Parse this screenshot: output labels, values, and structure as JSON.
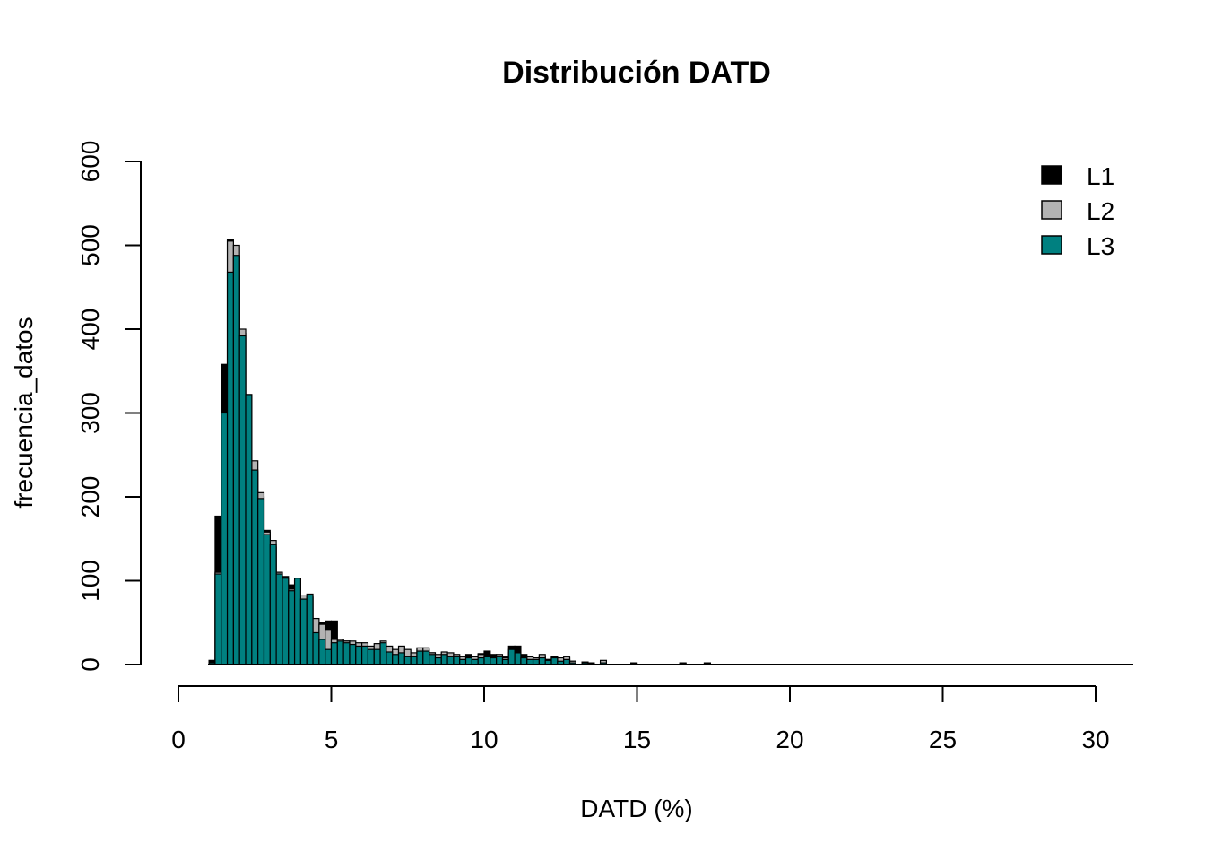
{
  "chart_data": {
    "type": "bar",
    "title": "Distribución DATD",
    "xlabel": "DATD (%)",
    "ylabel": "frecuencia_datos",
    "xlim": [
      0,
      30
    ],
    "ylim": [
      0,
      600
    ],
    "xticks": [
      "0",
      "5",
      "10",
      "15",
      "20",
      "25",
      "30"
    ],
    "yticks": [
      "0",
      "100",
      "200",
      "300",
      "400",
      "500",
      "600"
    ],
    "legend_position": "top-right",
    "grid": false,
    "bin_width": 0.2,
    "series": [
      {
        "name": "L1",
        "color": "#000000",
        "x": [
          1.1,
          1.3,
          1.5,
          1.7,
          1.9,
          2.1,
          2.3,
          2.5,
          2.7,
          2.9,
          3.1,
          3.3,
          3.5,
          3.7,
          3.9,
          4.1,
          4.3,
          4.5,
          4.7,
          4.9,
          5.1,
          5.3,
          5.5,
          5.7,
          5.9,
          6.1,
          6.3,
          6.5,
          6.7,
          6.9,
          7.1,
          7.3,
          7.5,
          7.7,
          7.9,
          8.1,
          8.3,
          8.5,
          8.7,
          8.9,
          9.1,
          9.3,
          9.5,
          9.7,
          9.9,
          10.1,
          10.3,
          10.5,
          10.7,
          10.9,
          11.1,
          11.3,
          11.5,
          11.7,
          11.9,
          12.1,
          12.3,
          12.5,
          12.7,
          12.9,
          13.3,
          13.5,
          13.9,
          14.9,
          16.5,
          17.3
        ],
        "values": [
          5,
          177,
          358,
          507,
          487,
          395,
          320,
          230,
          200,
          160,
          140,
          110,
          105,
          95,
          100,
          80,
          80,
          45,
          50,
          52,
          52,
          30,
          28,
          26,
          25,
          25,
          20,
          22,
          25,
          20,
          15,
          18,
          14,
          12,
          18,
          18,
          14,
          10,
          14,
          12,
          10,
          8,
          12,
          10,
          13,
          16,
          12,
          10,
          10,
          22,
          22,
          12,
          10,
          8,
          10,
          6,
          10,
          6,
          8,
          4,
          3,
          2,
          3,
          2,
          2,
          2
        ]
      },
      {
        "name": "L2",
        "color": "#b3b3b3",
        "x": [
          1.1,
          1.3,
          1.5,
          1.7,
          1.9,
          2.1,
          2.3,
          2.5,
          2.7,
          2.9,
          3.1,
          3.3,
          3.5,
          3.7,
          3.9,
          4.1,
          4.3,
          4.5,
          4.7,
          4.9,
          5.1,
          5.3,
          5.5,
          5.7,
          5.9,
          6.1,
          6.3,
          6.5,
          6.7,
          6.9,
          7.1,
          7.3,
          7.5,
          7.7,
          7.9,
          8.1,
          8.3,
          8.5,
          8.7,
          8.9,
          9.1,
          9.3,
          9.5,
          9.7,
          9.9,
          10.1,
          10.3,
          10.5,
          10.7,
          10.9,
          11.1,
          11.3,
          11.5,
          11.7,
          11.9,
          12.1,
          12.3,
          12.5,
          12.7,
          12.9,
          13.3,
          13.5,
          13.9,
          14.9,
          16.5,
          17.3
        ],
        "values": [
          2,
          110,
          300,
          505,
          500,
          400,
          322,
          243,
          205,
          158,
          148,
          110,
          98,
          90,
          100,
          82,
          82,
          55,
          48,
          42,
          30,
          30,
          28,
          28,
          26,
          26,
          22,
          25,
          28,
          22,
          18,
          22,
          18,
          14,
          20,
          20,
          14,
          12,
          15,
          14,
          12,
          10,
          10,
          10,
          12,
          10,
          10,
          12,
          8,
          14,
          12,
          10,
          10,
          8,
          12,
          6,
          10,
          8,
          10,
          4,
          3,
          2,
          5,
          2,
          2,
          2
        ]
      },
      {
        "name": "L3",
        "color": "#008080",
        "x": [
          1.1,
          1.3,
          1.5,
          1.7,
          1.9,
          2.1,
          2.3,
          2.5,
          2.7,
          2.9,
          3.1,
          3.3,
          3.5,
          3.7,
          3.9,
          4.1,
          4.3,
          4.5,
          4.7,
          4.9,
          5.1,
          5.3,
          5.5,
          5.7,
          5.9,
          6.1,
          6.3,
          6.5,
          6.7,
          6.9,
          7.1,
          7.3,
          7.5,
          7.7,
          7.9,
          8.1,
          8.3,
          8.5,
          8.7,
          8.9,
          9.1,
          9.3,
          9.5,
          9.7,
          9.9,
          10.1,
          10.3,
          10.5,
          10.7,
          10.9,
          11.1,
          11.3,
          11.5,
          11.7,
          11.9,
          12.1,
          12.3,
          12.5,
          12.7,
          12.9,
          13.3,
          13.5,
          13.9,
          14.9,
          16.5,
          17.3
        ],
        "values": [
          2,
          108,
          300,
          468,
          488,
          392,
          322,
          232,
          198,
          155,
          143,
          108,
          103,
          88,
          103,
          78,
          84,
          38,
          30,
          18,
          26,
          28,
          26,
          24,
          22,
          22,
          18,
          18,
          26,
          15,
          12,
          14,
          10,
          10,
          16,
          16,
          12,
          8,
          12,
          10,
          10,
          6,
          8,
          6,
          8,
          10,
          8,
          10,
          6,
          18,
          14,
          8,
          6,
          6,
          8,
          5,
          8,
          4,
          6,
          2,
          2,
          1,
          2,
          1,
          1,
          1
        ]
      }
    ]
  }
}
